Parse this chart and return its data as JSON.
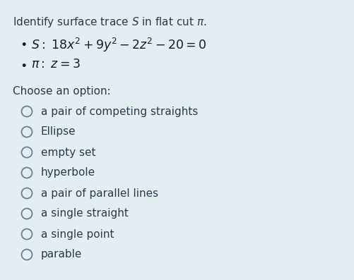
{
  "background_color": "#e4eef2",
  "title_text": "Identify surface trace $S$ in flat cut $\\pi$.",
  "bullet1_text": "$S:\\;  18x^2 + 9y^2 - 2z^2 - 20 = 0$",
  "bullet2_text": "$\\pi:\\;  z = 3$",
  "choose_text": "Choose an option:",
  "options": [
    "a pair of competing straights",
    "Ellipse",
    "empty set",
    "hyperbole",
    "a pair of parallel lines",
    "a single straight",
    "a single point",
    "parable"
  ],
  "title_color": "#2d3a4a",
  "bullet_color": "#1a1a2e",
  "option_color": "#2d3a4a",
  "choose_color": "#2d3a4a",
  "circle_edgecolor": "#6a8090",
  "title_fontsize": 11.0,
  "bullet_fontsize": 12.5,
  "option_fontsize": 11.0,
  "choose_fontsize": 11.0
}
